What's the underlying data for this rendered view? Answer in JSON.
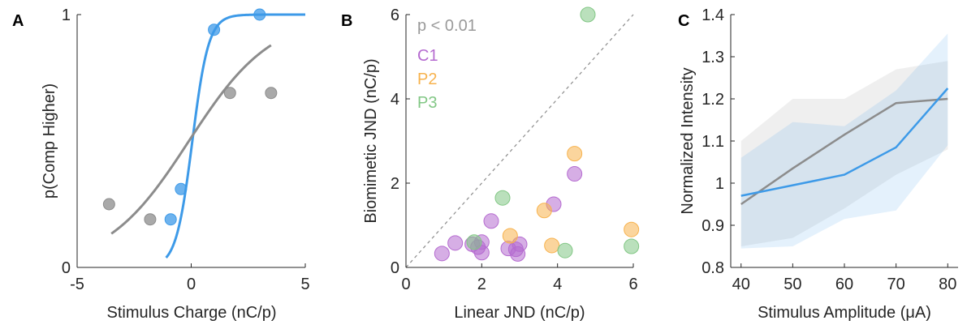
{
  "colors": {
    "blue": "#3d9ae8",
    "gray": "#8c8c8c",
    "purple": "#b56bd0",
    "orange": "#f7b24d",
    "green": "#82c785",
    "axis": "#262626"
  },
  "chart_data": [
    {
      "panel_letter": "A",
      "type": "scatter",
      "xlabel": "Stimulus Charge (nC/p)",
      "ylabel": "p(Comp Higher)",
      "xlim": [
        -5,
        5
      ],
      "ylim": [
        0,
        1
      ],
      "xticks": [
        -5,
        0,
        5
      ],
      "yticks": [
        0,
        1
      ],
      "x_tick_labels": [
        "-5",
        "0",
        "5"
      ],
      "y_tick_labels": [
        "0",
        "1"
      ],
      "series": [
        {
          "color": "blue",
          "points": [
            [
              -0.9,
              0.19
            ],
            [
              -0.45,
              0.31
            ],
            [
              1.0,
              0.94
            ],
            [
              3.0,
              1.0
            ]
          ],
          "fit": {
            "kind": "logistic",
            "k": 2.8,
            "x0": 0.05,
            "x_range": [
              -1.1,
              5.0
            ]
          }
        },
        {
          "color": "gray",
          "points": [
            [
              -3.6,
              0.25
            ],
            [
              -1.8,
              0.19
            ],
            [
              1.7,
              0.69
            ],
            [
              3.5,
              0.69
            ]
          ],
          "fit": {
            "kind": "logistic",
            "k": 0.55,
            "x0": -0.1,
            "x_range": [
              -3.5,
              3.5
            ]
          }
        }
      ]
    },
    {
      "panel_letter": "B",
      "type": "scatter",
      "xlabel": "Linear JND (nC/p)",
      "ylabel": "Biomimetic JND (nC/p)",
      "ylabel_color": "blue",
      "xlim": [
        0,
        6
      ],
      "ylim": [
        0,
        6
      ],
      "xticks": [
        0,
        2,
        4,
        6
      ],
      "yticks": [
        0,
        2,
        4,
        6
      ],
      "x_tick_labels": [
        "0",
        "2",
        "4",
        "6"
      ],
      "y_tick_labels": [
        "0",
        "2",
        "4",
        "6"
      ],
      "identity_line": true,
      "stat_text": "p < 0.01",
      "series": [
        {
          "name": "C1",
          "color": "purple",
          "points": [
            [
              0.95,
              0.33
            ],
            [
              1.3,
              0.58
            ],
            [
              1.75,
              0.55
            ],
            [
              1.9,
              0.48
            ],
            [
              2.0,
              0.35
            ],
            [
              2.0,
              0.6
            ],
            [
              2.25,
              1.1
            ],
            [
              2.7,
              0.45
            ],
            [
              2.9,
              0.43
            ],
            [
              2.95,
              0.32
            ],
            [
              3.0,
              0.55
            ],
            [
              3.9,
              1.5
            ],
            [
              4.45,
              2.22
            ]
          ]
        },
        {
          "name": "P2",
          "color": "orange",
          "points": [
            [
              2.75,
              0.75
            ],
            [
              3.65,
              1.35
            ],
            [
              3.85,
              0.52
            ],
            [
              4.45,
              2.7
            ],
            [
              5.95,
              0.9
            ]
          ]
        },
        {
          "name": "P3",
          "color": "green",
          "points": [
            [
              1.8,
              0.6
            ],
            [
              2.55,
              1.65
            ],
            [
              4.2,
              0.4
            ],
            [
              4.8,
              6.0
            ],
            [
              5.95,
              0.5
            ]
          ]
        }
      ]
    },
    {
      "panel_letter": "C",
      "type": "line",
      "xlabel": "Stimulus Amplitude (μA)",
      "ylabel": "Normalized Intensity",
      "xlim": [
        38,
        82
      ],
      "ylim": [
        0.8,
        1.4
      ],
      "xticks": [
        40,
        50,
        60,
        70,
        80
      ],
      "yticks": [
        0.8,
        0.9,
        1.0,
        1.1,
        1.2,
        1.3,
        1.4
      ],
      "x_tick_labels": [
        "40",
        "50",
        "60",
        "70",
        "80"
      ],
      "y_tick_labels": [
        "0.8",
        "0.9",
        "1",
        "1.1",
        "1.2",
        "1.3",
        "1.4"
      ],
      "x": [
        40,
        50,
        60,
        70,
        80
      ],
      "series": [
        {
          "color": "gray",
          "values": [
            0.95,
            1.035,
            1.115,
            1.19,
            1.2
          ],
          "band_lower": [
            0.85,
            0.87,
            0.94,
            1.02,
            1.08
          ],
          "band_upper": [
            1.1,
            1.2,
            1.2,
            1.27,
            1.29
          ]
        },
        {
          "color": "blue",
          "values": [
            0.97,
            0.995,
            1.02,
            1.085,
            1.225
          ],
          "band_lower": [
            0.845,
            0.85,
            0.915,
            0.935,
            1.09
          ],
          "band_upper": [
            1.06,
            1.145,
            1.135,
            1.22,
            1.355
          ]
        }
      ]
    }
  ]
}
